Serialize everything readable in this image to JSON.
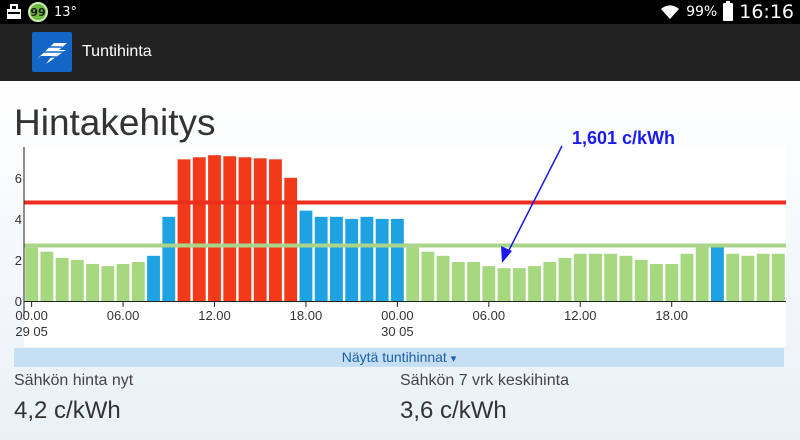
{
  "status": {
    "notification_icons": [
      "briefcase-icon",
      "badge-99-icon"
    ],
    "badge_text": "99",
    "temperature": "13°",
    "battery": "99%",
    "time": "16:16"
  },
  "app": {
    "title": "Tuntihinta"
  },
  "page": {
    "title": "Hintakehitys"
  },
  "annotation": {
    "text": "1,601 c/kWh"
  },
  "show_hours": {
    "label": "Näytä tuntihinnat",
    "arrow": "▾"
  },
  "stats": {
    "now_label": "Sähkön hinta nyt",
    "now_value": "4,2 c/kWh",
    "avg_label": "Sähkön 7 vrk keskihinta",
    "avg_value": "3,6 c/kWh"
  },
  "chart_data": {
    "type": "bar",
    "ylim": [
      0,
      7.5
    ],
    "yticks": [
      "0",
      "2",
      "4",
      "6"
    ],
    "xticks": [
      {
        "index": 0,
        "label": "00.00",
        "sub": "29 05"
      },
      {
        "index": 6,
        "label": "06.00",
        "sub": ""
      },
      {
        "index": 12,
        "label": "12.00",
        "sub": ""
      },
      {
        "index": 18,
        "label": "18.00",
        "sub": ""
      },
      {
        "index": 24,
        "label": "00.00",
        "sub": "30 05"
      },
      {
        "index": 30,
        "label": "06.00",
        "sub": ""
      },
      {
        "index": 36,
        "label": "12.00",
        "sub": ""
      },
      {
        "index": 42,
        "label": "18.00",
        "sub": ""
      }
    ],
    "values": [
      2.6,
      2.4,
      2.1,
      2.0,
      1.8,
      1.7,
      1.8,
      1.9,
      2.2,
      4.1,
      6.9,
      7.0,
      7.1,
      7.05,
      7.0,
      6.95,
      6.9,
      6.0,
      4.4,
      4.1,
      4.1,
      4.0,
      4.1,
      4.0,
      4.0,
      2.6,
      2.4,
      2.2,
      1.9,
      1.9,
      1.7,
      1.6,
      1.6,
      1.7,
      1.9,
      2.1,
      2.3,
      2.3,
      2.3,
      2.2,
      2.0,
      1.8,
      1.8,
      2.3,
      2.8,
      2.7,
      2.3,
      2.2,
      2.3,
      2.3
    ],
    "colors": [
      "green",
      "green",
      "green",
      "green",
      "green",
      "green",
      "green",
      "green",
      "blue",
      "blue",
      "red",
      "red",
      "red",
      "red",
      "red",
      "red",
      "red",
      "red",
      "blue",
      "blue",
      "blue",
      "blue",
      "blue",
      "blue",
      "blue",
      "green",
      "green",
      "green",
      "green",
      "green",
      "green",
      "green",
      "green",
      "green",
      "green",
      "green",
      "green",
      "green",
      "green",
      "green",
      "green",
      "green",
      "green",
      "green",
      "green",
      "blue",
      "green",
      "green",
      "green",
      "green"
    ],
    "reference_lines": [
      {
        "value": 4.8,
        "color": "#ee2e1c"
      },
      {
        "value": 2.7,
        "color": "#a9d48a"
      }
    ],
    "palette": {
      "green": "#a6d880",
      "blue": "#1ea2e1",
      "red": "#f23a1a"
    }
  }
}
